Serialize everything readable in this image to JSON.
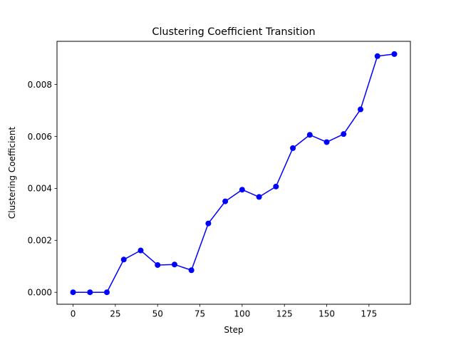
{
  "chart_data": {
    "type": "line",
    "title": "Clustering Coefficient Transition",
    "xlabel": "Step",
    "ylabel": "Clustering Coefficient",
    "xlim": [
      -9.5,
      199.5
    ],
    "ylim": [
      -0.00046,
      0.00966
    ],
    "x_ticks": [
      0,
      25,
      50,
      75,
      100,
      125,
      150,
      175
    ],
    "x_tick_labels": [
      "0",
      "25",
      "50",
      "75",
      "100",
      "125",
      "150",
      "175"
    ],
    "y_ticks": [
      0.0,
      0.002,
      0.004,
      0.006,
      0.008
    ],
    "y_tick_labels": [
      "0.000",
      "0.002",
      "0.004",
      "0.006",
      "0.008"
    ],
    "grid": false,
    "legend": "none",
    "series": [
      {
        "color": "#0000ff",
        "marker": "circle",
        "x": [
          0,
          10,
          20,
          30,
          40,
          50,
          60,
          70,
          80,
          90,
          100,
          110,
          120,
          130,
          140,
          150,
          160,
          170,
          180,
          190
        ],
        "values": [
          0.0,
          0.0,
          0.0,
          0.00126,
          0.00161,
          0.00105,
          0.00107,
          0.00085,
          0.00265,
          0.0035,
          0.00395,
          0.00367,
          0.00407,
          0.00555,
          0.00606,
          0.00578,
          0.00609,
          0.00704,
          0.00909,
          0.00917
        ]
      }
    ]
  }
}
